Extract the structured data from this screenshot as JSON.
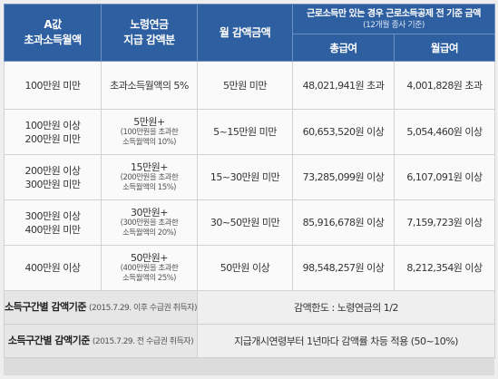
{
  "header": {
    "col1": [
      "A값",
      "초과소득월액"
    ],
    "col2": [
      "노령연금",
      "지급 감액분"
    ],
    "col3": "월 감액금액",
    "group": "근로소득만 있는 경우 근로소득공제 전 기준 금액",
    "group_sub": "(12개월 종사 기준)",
    "sub_total": "총급여",
    "sub_monthly": "월급여"
  },
  "rows": [
    {
      "range": [
        "100만원 미만"
      ],
      "cut_main": "초과소득월액의 5%",
      "cut_note": [],
      "amount": "5만원 미만",
      "total": "48,021,941원 초과",
      "monthly": "4,001,828원 초과"
    },
    {
      "range": [
        "100만원 이상",
        "200만원 미만"
      ],
      "cut_main": "5만원+",
      "cut_note": [
        "(100만원을 초과한",
        "소득월액의 10%)"
      ],
      "amount": "5~15만원 미만",
      "total": "60,653,520원 이상",
      "monthly": "5,054,460원 이상"
    },
    {
      "range": [
        "200만원 이상",
        "300만원 미만"
      ],
      "cut_main": "15만원+",
      "cut_note": [
        "(200만원을 초과한",
        "소득월액의 15%)"
      ],
      "amount": "15~30만원 미만",
      "total": "73,285,099원 이상",
      "monthly": "6,107,091원 이상"
    },
    {
      "range": [
        "300만원 이상",
        "400만원 미만"
      ],
      "cut_main": "30만원+",
      "cut_note": [
        "(300만원을 초과한",
        "소득월액의 20%)"
      ],
      "amount": "30~50만원 미만",
      "total": "85,916,678원 이상",
      "monthly": "7,159,723원 이상"
    },
    {
      "range": [
        "400만원 이상"
      ],
      "cut_main": "50만원+",
      "cut_note": [
        "(400만원을 초과한",
        "소득월액의 25%)"
      ],
      "amount": "50만원 이상",
      "total": "98,548,257원 이상",
      "monthly": "8,212,354원 이상"
    }
  ],
  "footer": [
    {
      "label": "소득구간별 감액기준",
      "label_small": "(2015.7.29. 이후 수급권 취득자)",
      "value": "감액한도 : 노령연금의 1/2"
    },
    {
      "label": "소득구간별 감액기준",
      "label_small": "(2015.7.29. 전 수급권 취득자)",
      "value": "지급개시연령부터 1년마다 감액률 차등 적용 (50~10%)"
    }
  ]
}
